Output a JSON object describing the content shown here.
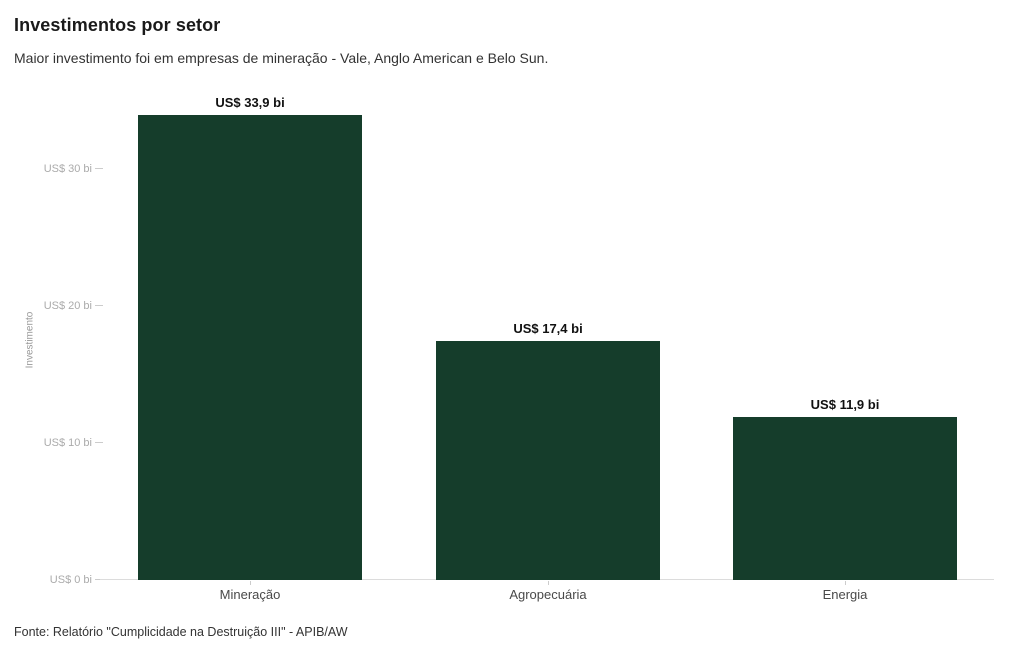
{
  "header": {
    "title": "Investimentos por setor",
    "subtitle": "Maior investimento foi em empresas de mineração - Vale, Anglo American e Belo Sun."
  },
  "footer": {
    "source_note": "Fonte: Relatório \"Cumplicidade na Destruição III\" - APIB/AW"
  },
  "chart_data": {
    "type": "bar",
    "orientation": "vertical",
    "title": "Investimentos por setor",
    "subtitle": "Maior investimento foi em empresas de mineração - Vale, Anglo American e Belo Sun.",
    "categories": [
      "Mineração",
      "Agropecuária",
      "Energia"
    ],
    "values": [
      33.9,
      17.4,
      11.9
    ],
    "value_labels": [
      "US$ 33,9 bi",
      "US$ 17,4 bi",
      "US$ 11,9 bi"
    ],
    "xlabel": "",
    "ylabel": "Investimento",
    "ylim": [
      0,
      35
    ],
    "yticks": [
      {
        "value": 0,
        "label": "US$ 0 bi"
      },
      {
        "value": 10,
        "label": "US$ 10 bi"
      },
      {
        "value": 20,
        "label": "US$ 20 bi"
      },
      {
        "value": 30,
        "label": "US$ 30 bi"
      }
    ],
    "grid": false,
    "legend": false,
    "source": "Fonte: Relatório \"Cumplicidade na Destruição III\" - APIB/AW"
  },
  "colors": {
    "background": "#ffffff",
    "bar": "#153d2b",
    "title_text": "#1a1a1a",
    "subtitle_text": "#333333",
    "value_label_text": "#111111",
    "category_label_text": "#494949",
    "tick_label_text": "#ababab",
    "axis_label_text": "#999999",
    "axis_line": "#dcdcdc",
    "tick_mark": "#cccccc"
  }
}
